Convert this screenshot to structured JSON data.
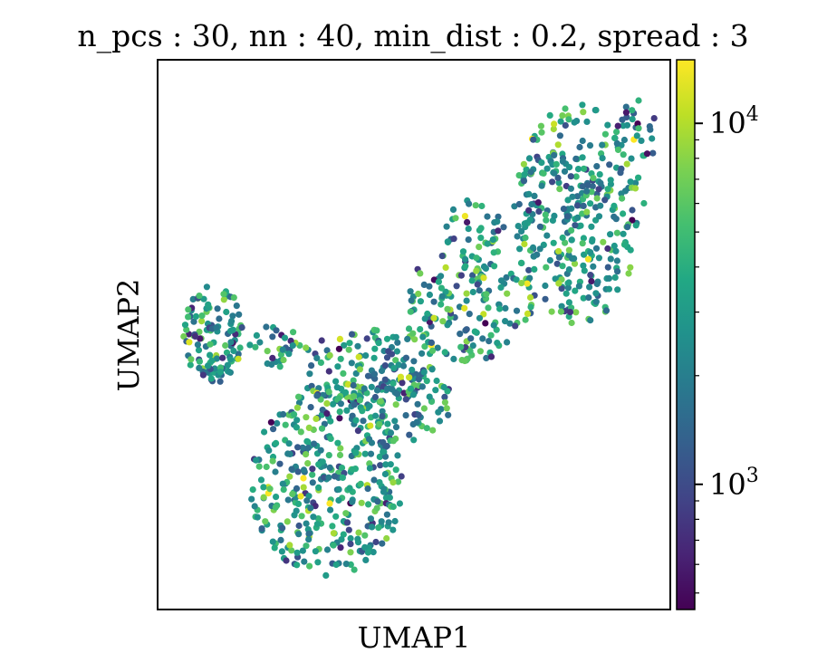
{
  "chart_data": {
    "type": "scatter",
    "title": "n_pcs : 30, nn : 40, min_dist : 0.2, spread : 3",
    "xlabel": "UMAP1",
    "ylabel": "UMAP2",
    "x_ticks_shown": false,
    "y_ticks_shown": false,
    "grid": false,
    "colormap": "viridis",
    "colorbar": {
      "scale": "log",
      "range": [
        450,
        15000
      ],
      "ticks": [
        {
          "value": 1000,
          "base": "10",
          "exp": "3"
        },
        {
          "value": 10000,
          "base": "10",
          "exp": "4"
        }
      ]
    },
    "point_color_distribution": {
      "log10_mean": 3.45,
      "log10_sd": 0.3
    },
    "regions": [
      {
        "cx": 0.82,
        "cy": 0.28,
        "rx": 0.13,
        "ry": 0.2,
        "n": 340
      },
      {
        "cx": 0.6,
        "cy": 0.45,
        "rx": 0.13,
        "ry": 0.1,
        "n": 160
      },
      {
        "cx": 0.4,
        "cy": 0.56,
        "rx": 0.14,
        "ry": 0.07,
        "n": 140
      },
      {
        "cx": 0.33,
        "cy": 0.77,
        "rx": 0.15,
        "ry": 0.17,
        "n": 360
      },
      {
        "cx": 0.46,
        "cy": 0.63,
        "rx": 0.12,
        "ry": 0.07,
        "n": 90
      },
      {
        "cx": 0.11,
        "cy": 0.5,
        "rx": 0.06,
        "ry": 0.09,
        "n": 120
      },
      {
        "cx": 0.23,
        "cy": 0.52,
        "rx": 0.05,
        "ry": 0.04,
        "n": 30
      },
      {
        "cx": 0.62,
        "cy": 0.31,
        "rx": 0.06,
        "ry": 0.06,
        "n": 40
      },
      {
        "cx": 0.94,
        "cy": 0.13,
        "rx": 0.05,
        "ry": 0.06,
        "n": 30
      }
    ]
  }
}
